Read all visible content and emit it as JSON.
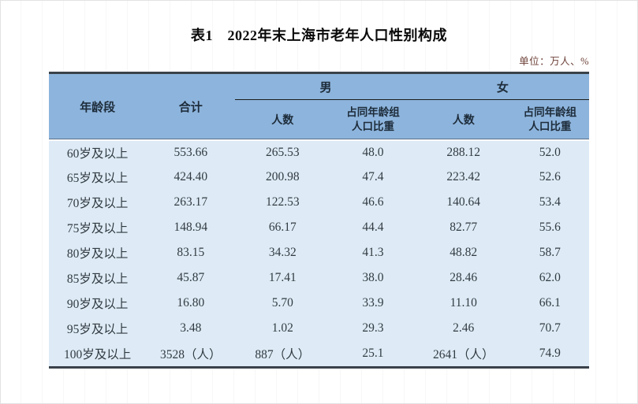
{
  "title": "表1　2022年末上海市老年人口性别构成",
  "unit_note": "单位：万人、%",
  "chart_data": {
    "type": "table",
    "columns": {
      "age_group": "年龄段",
      "total": "合计",
      "male": "男",
      "female": "女",
      "count": "人数",
      "share": "占同年龄组\n人口比重"
    },
    "rows": [
      [
        "60岁及以上",
        "553.66",
        "265.53",
        "48.0",
        "288.12",
        "52.0"
      ],
      [
        "65岁及以上",
        "424.40",
        "200.98",
        "47.4",
        "223.42",
        "52.6"
      ],
      [
        "70岁及以上",
        "263.17",
        "122.53",
        "46.6",
        "140.64",
        "53.4"
      ],
      [
        "75岁及以上",
        "148.94",
        "66.17",
        "44.4",
        "82.77",
        "55.6"
      ],
      [
        "80岁及以上",
        "83.15",
        "34.32",
        "41.3",
        "48.82",
        "58.7"
      ],
      [
        "85岁及以上",
        "45.87",
        "17.41",
        "38.0",
        "28.46",
        "62.0"
      ],
      [
        "90岁及以上",
        "16.80",
        "5.70",
        "33.9",
        "11.10",
        "66.1"
      ],
      [
        "95岁及以上",
        "3.48",
        "1.02",
        "29.3",
        "2.46",
        "70.7"
      ],
      [
        "100岁及以上",
        "3528（人）",
        "887（人）",
        "25.1",
        "2641（人）",
        "74.9"
      ]
    ],
    "colors": {
      "header_bg": "#8db4dc",
      "body_bg": "#deebf6",
      "frame_border": "#3a4149"
    }
  }
}
